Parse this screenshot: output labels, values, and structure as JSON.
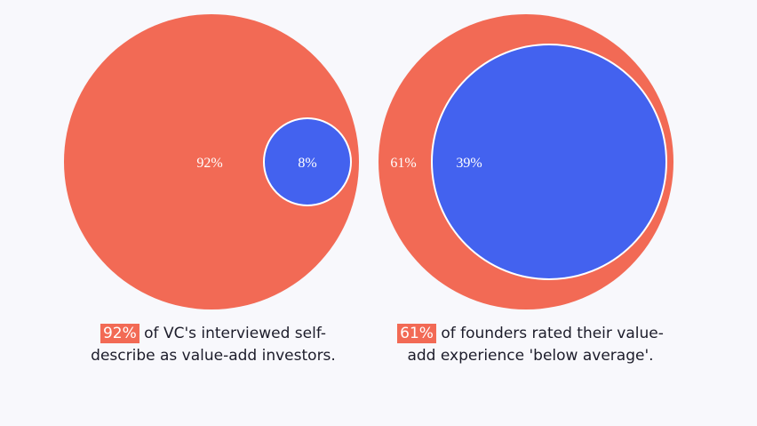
{
  "colors": {
    "background": "#f8f8fc",
    "coral": "#f26a55",
    "blue": "#4362ef",
    "text": "#1c1c2a",
    "outline": "#ffffff"
  },
  "chart_data": [
    {
      "type": "pie",
      "labels": [
        "92%",
        "8%"
      ],
      "values": [
        92,
        8
      ],
      "colors": [
        "#f26a55",
        "#4362ef"
      ],
      "caption": {
        "highlight": "92%",
        "line1": " of VC's interviewed self-",
        "line2": "describe as value-add investors."
      }
    },
    {
      "type": "pie",
      "labels": [
        "61%",
        "39%"
      ],
      "values": [
        61,
        39
      ],
      "colors": [
        "#f26a55",
        "#4362ef"
      ],
      "caption": {
        "highlight": "61%",
        "line1": " of founders rated their value-",
        "line2": "add experience 'below average'."
      }
    }
  ]
}
